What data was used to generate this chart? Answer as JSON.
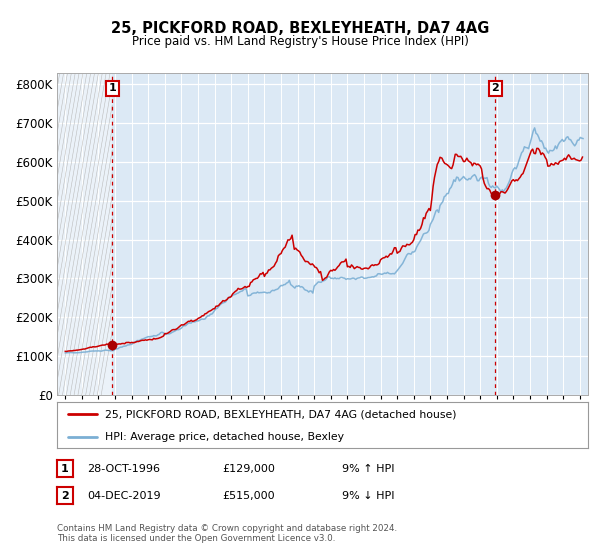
{
  "title_line1": "25, PICKFORD ROAD, BEXLEYHEATH, DA7 4AG",
  "title_line2": "Price paid vs. HM Land Registry's House Price Index (HPI)",
  "plot_bg_color": "#dce9f5",
  "hpi_line_color": "#7bafd4",
  "price_line_color": "#cc0000",
  "marker_color": "#aa0000",
  "dashed_line_color": "#cc0000",
  "purchase1_year": 1996.83,
  "purchase1_price": 129000,
  "purchase2_year": 2019.92,
  "purchase2_price": 515000,
  "ylim_min": 0,
  "ylim_max": 830000,
  "legend_label1": "25, PICKFORD ROAD, BEXLEYHEATH, DA7 4AG (detached house)",
  "legend_label2": "HPI: Average price, detached house, Bexley",
  "table_row1": [
    "1",
    "28-OCT-1996",
    "£129,000",
    "9% ↑ HPI"
  ],
  "table_row2": [
    "2",
    "04-DEC-2019",
    "£515,000",
    "9% ↓ HPI"
  ],
  "footer": "Contains HM Land Registry data © Crown copyright and database right 2024.\nThis data is licensed under the Open Government Licence v3.0.",
  "xlabel_years": [
    1994,
    1995,
    1996,
    1997,
    1998,
    1999,
    2000,
    2001,
    2002,
    2003,
    2004,
    2005,
    2006,
    2007,
    2008,
    2009,
    2010,
    2011,
    2012,
    2013,
    2014,
    2015,
    2016,
    2017,
    2018,
    2019,
    2020,
    2021,
    2022,
    2023,
    2024,
    2025
  ],
  "xmin": 1993.5,
  "xmax": 2025.5
}
